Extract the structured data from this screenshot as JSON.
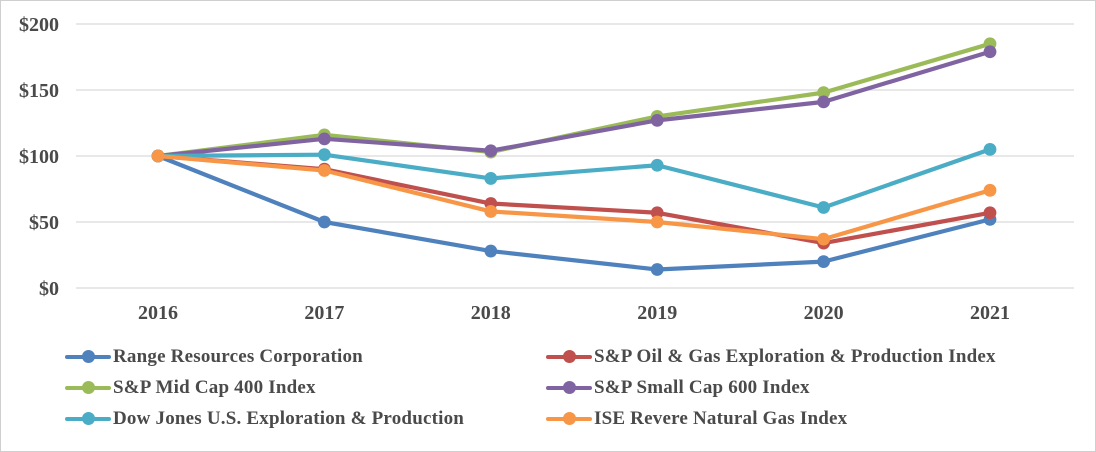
{
  "style": {
    "grid_color": "#d9d9d9",
    "text_color": "#4a4a4a",
    "background": "#ffffff"
  },
  "chart_data": {
    "type": "line",
    "title": "",
    "xlabel": "",
    "ylabel": "",
    "categories": [
      "2016",
      "2017",
      "2018",
      "2019",
      "2020",
      "2021"
    ],
    "series": [
      {
        "name": "Range Resources Corporation",
        "color": "#4F81BD",
        "values": [
          100,
          50,
          28,
          14,
          20,
          52
        ]
      },
      {
        "name": "S&P Oil & Gas Exploration & Production Index",
        "color": "#C0504D",
        "values": [
          100,
          90,
          64,
          57,
          34,
          57
        ]
      },
      {
        "name": "S&P Mid Cap 400 Index",
        "color": "#9BBB59",
        "values": [
          100,
          116,
          103,
          130,
          148,
          185
        ]
      },
      {
        "name": "S&P Small Cap 600 Index",
        "color": "#8064A2",
        "values": [
          100,
          113,
          104,
          127,
          141,
          179
        ]
      },
      {
        "name": "Dow Jones U.S. Exploration & Production",
        "color": "#4BACC6",
        "values": [
          100,
          101,
          83,
          93,
          61,
          105
        ]
      },
      {
        "name": "ISE Revere Natural Gas Index",
        "color": "#F79646",
        "values": [
          100,
          89,
          58,
          50,
          37,
          74
        ]
      }
    ],
    "yticks": [
      {
        "label": "$0",
        "value": 0
      },
      {
        "label": "$50",
        "value": 50
      },
      {
        "label": "$100",
        "value": 100
      },
      {
        "label": "$150",
        "value": 150
      },
      {
        "label": "$200",
        "value": 200
      }
    ],
    "ylim": [
      0,
      200
    ],
    "grid": true,
    "marker": "circle",
    "legend_position": "bottom"
  }
}
